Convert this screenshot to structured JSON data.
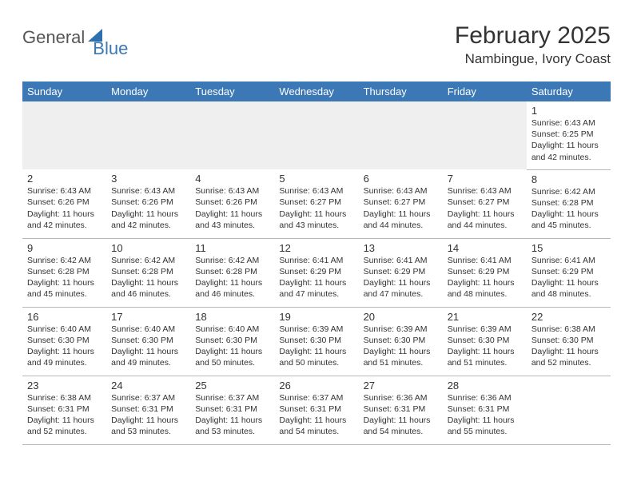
{
  "logo": {
    "part1": "General",
    "part2": "Blue"
  },
  "title": "February 2025",
  "location": "Nambingue, Ivory Coast",
  "colors": {
    "header_bg": "#3b78b5",
    "header_fg": "#ffffff",
    "text": "#333333",
    "rule": "#b8b8b8",
    "empty_bg": "#efefef",
    "logo_blue": "#3b78b5"
  },
  "daynames": [
    "Sunday",
    "Monday",
    "Tuesday",
    "Wednesday",
    "Thursday",
    "Friday",
    "Saturday"
  ],
  "labels": {
    "sunrise": "Sunrise:",
    "sunset": "Sunset:",
    "daylight": "Daylight:"
  },
  "weeks": [
    [
      null,
      null,
      null,
      null,
      null,
      null,
      {
        "n": "1",
        "sunrise": "6:43 AM",
        "sunset": "6:25 PM",
        "daylight": "11 hours and 42 minutes."
      }
    ],
    [
      {
        "n": "2",
        "sunrise": "6:43 AM",
        "sunset": "6:26 PM",
        "daylight": "11 hours and 42 minutes."
      },
      {
        "n": "3",
        "sunrise": "6:43 AM",
        "sunset": "6:26 PM",
        "daylight": "11 hours and 42 minutes."
      },
      {
        "n": "4",
        "sunrise": "6:43 AM",
        "sunset": "6:26 PM",
        "daylight": "11 hours and 43 minutes."
      },
      {
        "n": "5",
        "sunrise": "6:43 AM",
        "sunset": "6:27 PM",
        "daylight": "11 hours and 43 minutes."
      },
      {
        "n": "6",
        "sunrise": "6:43 AM",
        "sunset": "6:27 PM",
        "daylight": "11 hours and 44 minutes."
      },
      {
        "n": "7",
        "sunrise": "6:43 AM",
        "sunset": "6:27 PM",
        "daylight": "11 hours and 44 minutes."
      },
      {
        "n": "8",
        "sunrise": "6:42 AM",
        "sunset": "6:28 PM",
        "daylight": "11 hours and 45 minutes."
      }
    ],
    [
      {
        "n": "9",
        "sunrise": "6:42 AM",
        "sunset": "6:28 PM",
        "daylight": "11 hours and 45 minutes."
      },
      {
        "n": "10",
        "sunrise": "6:42 AM",
        "sunset": "6:28 PM",
        "daylight": "11 hours and 46 minutes."
      },
      {
        "n": "11",
        "sunrise": "6:42 AM",
        "sunset": "6:28 PM",
        "daylight": "11 hours and 46 minutes."
      },
      {
        "n": "12",
        "sunrise": "6:41 AM",
        "sunset": "6:29 PM",
        "daylight": "11 hours and 47 minutes."
      },
      {
        "n": "13",
        "sunrise": "6:41 AM",
        "sunset": "6:29 PM",
        "daylight": "11 hours and 47 minutes."
      },
      {
        "n": "14",
        "sunrise": "6:41 AM",
        "sunset": "6:29 PM",
        "daylight": "11 hours and 48 minutes."
      },
      {
        "n": "15",
        "sunrise": "6:41 AM",
        "sunset": "6:29 PM",
        "daylight": "11 hours and 48 minutes."
      }
    ],
    [
      {
        "n": "16",
        "sunrise": "6:40 AM",
        "sunset": "6:30 PM",
        "daylight": "11 hours and 49 minutes."
      },
      {
        "n": "17",
        "sunrise": "6:40 AM",
        "sunset": "6:30 PM",
        "daylight": "11 hours and 49 minutes."
      },
      {
        "n": "18",
        "sunrise": "6:40 AM",
        "sunset": "6:30 PM",
        "daylight": "11 hours and 50 minutes."
      },
      {
        "n": "19",
        "sunrise": "6:39 AM",
        "sunset": "6:30 PM",
        "daylight": "11 hours and 50 minutes."
      },
      {
        "n": "20",
        "sunrise": "6:39 AM",
        "sunset": "6:30 PM",
        "daylight": "11 hours and 51 minutes."
      },
      {
        "n": "21",
        "sunrise": "6:39 AM",
        "sunset": "6:30 PM",
        "daylight": "11 hours and 51 minutes."
      },
      {
        "n": "22",
        "sunrise": "6:38 AM",
        "sunset": "6:30 PM",
        "daylight": "11 hours and 52 minutes."
      }
    ],
    [
      {
        "n": "23",
        "sunrise": "6:38 AM",
        "sunset": "6:31 PM",
        "daylight": "11 hours and 52 minutes."
      },
      {
        "n": "24",
        "sunrise": "6:37 AM",
        "sunset": "6:31 PM",
        "daylight": "11 hours and 53 minutes."
      },
      {
        "n": "25",
        "sunrise": "6:37 AM",
        "sunset": "6:31 PM",
        "daylight": "11 hours and 53 minutes."
      },
      {
        "n": "26",
        "sunrise": "6:37 AM",
        "sunset": "6:31 PM",
        "daylight": "11 hours and 54 minutes."
      },
      {
        "n": "27",
        "sunrise": "6:36 AM",
        "sunset": "6:31 PM",
        "daylight": "11 hours and 54 minutes."
      },
      {
        "n": "28",
        "sunrise": "6:36 AM",
        "sunset": "6:31 PM",
        "daylight": "11 hours and 55 minutes."
      },
      null
    ]
  ]
}
